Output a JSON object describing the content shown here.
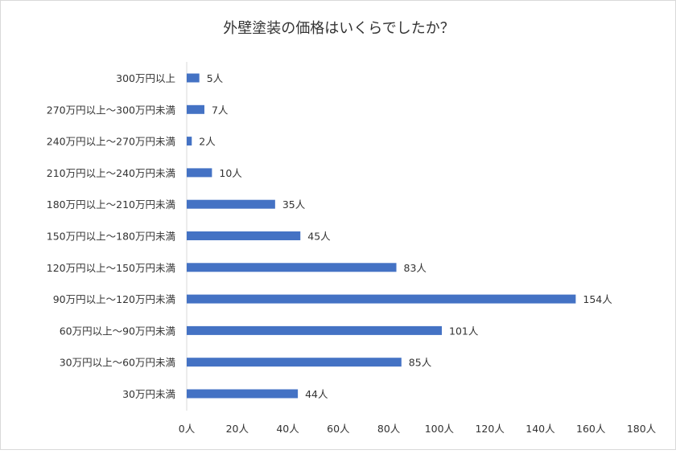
{
  "chart_data": {
    "type": "bar",
    "orientation": "horizontal",
    "title": "外壁塗装の価格はいくらでしたか？",
    "xlabel": "",
    "ylabel": "",
    "categories": [
      "300万円以上",
      "270万円以上〜300万円未満",
      "240万円以上〜270万円未満",
      "210万円以上〜240万円未満",
      "180万円以上〜210万円未満",
      "150万円以上〜180万円未満",
      "120万円以上〜150万円未満",
      "90万円以上〜120万円未満",
      "60万円以上〜90万円未満",
      "30万円以上〜60万円未満",
      "30万円未満"
    ],
    "values": [
      5,
      7,
      2,
      10,
      35,
      45,
      83,
      154,
      101,
      85,
      44
    ],
    "data_labels": [
      "5人",
      "7人",
      "2人",
      "10人",
      "35人",
      "45人",
      "83人",
      "154人",
      "101人",
      "85人",
      "44人"
    ],
    "xlim": [
      0,
      180
    ],
    "xticks": [
      0,
      20,
      40,
      60,
      80,
      100,
      120,
      140,
      160,
      180
    ],
    "xtick_labels": [
      "0人",
      "20人",
      "40人",
      "60人",
      "80人",
      "100人",
      "120人",
      "140人",
      "160人",
      "180人"
    ],
    "grid": false,
    "bar_color": "#4472C4"
  }
}
